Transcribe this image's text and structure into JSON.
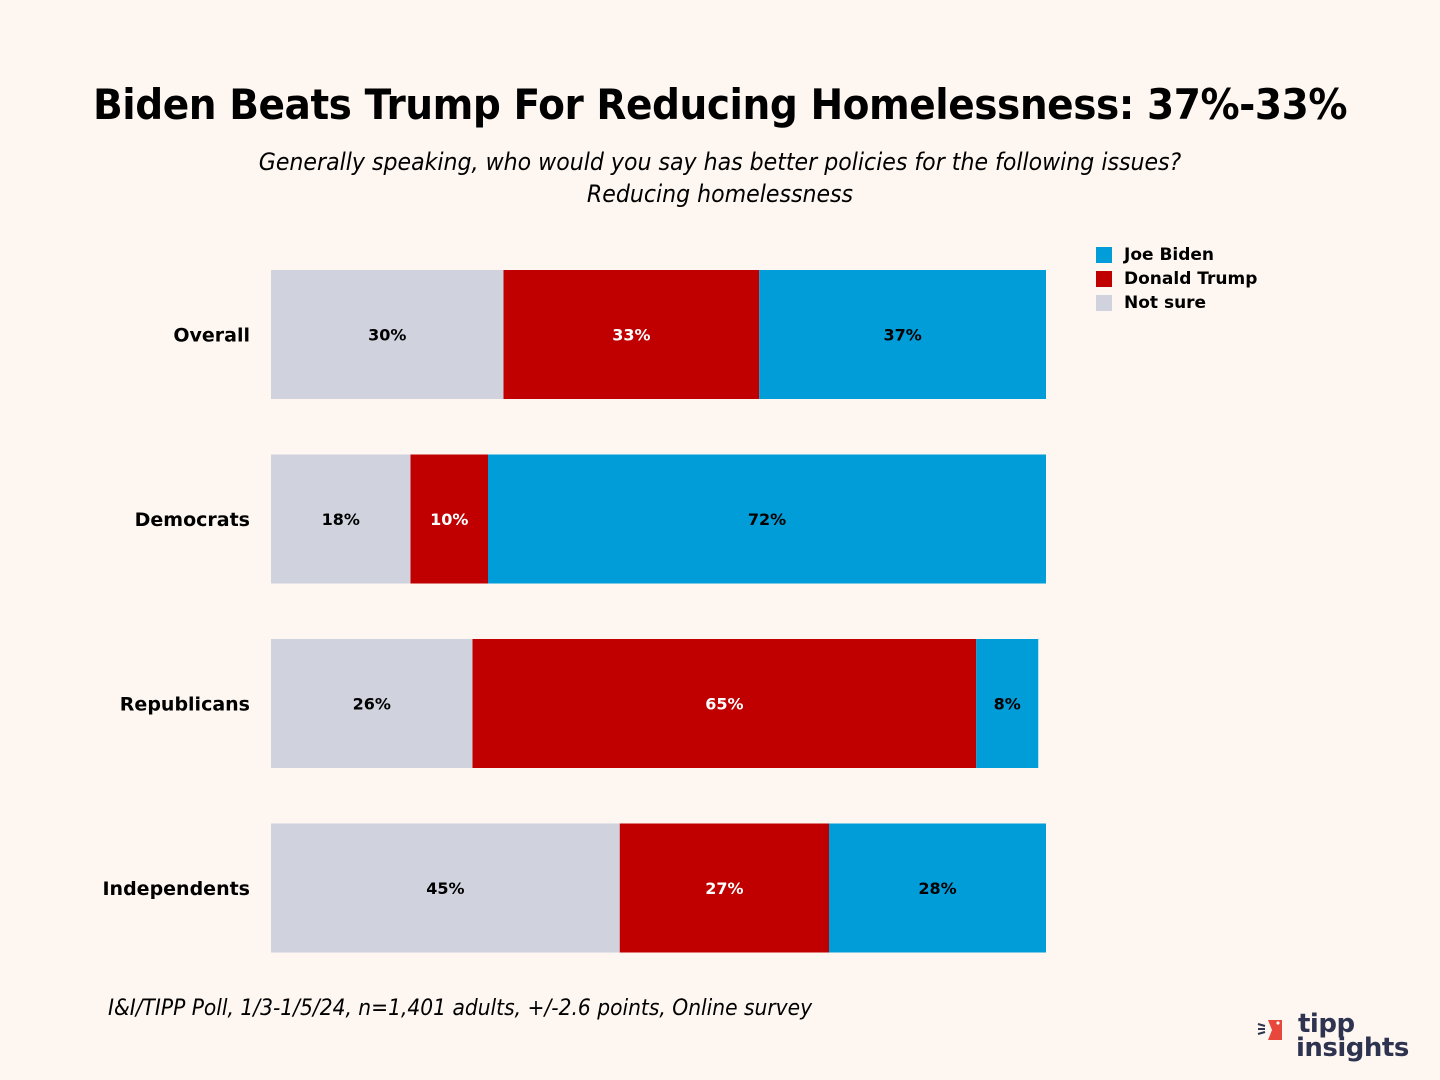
{
  "chart_data": {
    "type": "bar",
    "orientation": "horizontal",
    "stacked": true,
    "title": "Biden Beats Trump For Reducing Homelessness: 37%-33%",
    "subtitle": "Generally speaking, who would you say has better policies for the following issues? Reducing homelessness",
    "categories": [
      "Overall",
      "Democrats",
      "Republicans",
      "Independents"
    ],
    "series": [
      {
        "name": "Not sure",
        "color": "#d0d3de",
        "label_color": "#000000",
        "values": [
          30,
          18,
          26,
          45
        ]
      },
      {
        "name": "Donald Trump",
        "color": "#c00000",
        "label_color": "#ffffff",
        "values": [
          33,
          10,
          65,
          27
        ]
      },
      {
        "name": "Joe Biden",
        "color": "#009dd9",
        "label_color": "#000000",
        "values": [
          37,
          72,
          8,
          28
        ]
      }
    ],
    "legend_order": [
      "Joe Biden",
      "Donald Trump",
      "Not sure"
    ],
    "legend_position": "top-right",
    "value_suffix": "%",
    "xlim": [
      0,
      100
    ],
    "grid": false,
    "xlabel": "",
    "ylabel": ""
  },
  "footer": "I&I/TIPP Poll, 1/3-1/5/24, n=1,401 adults, +/-2.6 points, Online survey",
  "logo": {
    "line1": "tipp",
    "line2": "insights",
    "accent": "#e8473c",
    "text_color": "#2e3450"
  },
  "colors": {
    "background": "#fdf6f1"
  }
}
